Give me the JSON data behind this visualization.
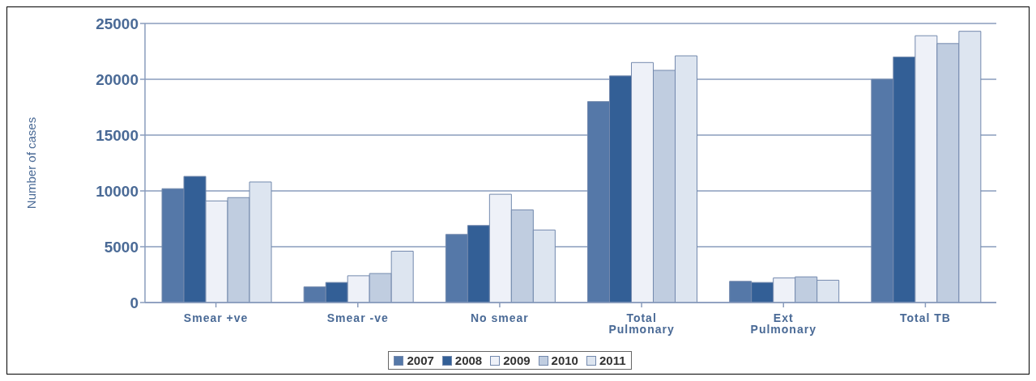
{
  "chart_data": {
    "type": "bar",
    "ylabel": "Number of cases",
    "categories": [
      "Smear +ve",
      "Smear -ve",
      "No smear",
      "Total Pulmonary",
      "Ext Pulmonary",
      "Total TB"
    ],
    "series": [
      {
        "name": "2007",
        "color": "#5578a8",
        "values": [
          10200,
          1400,
          6100,
          18000,
          1900,
          20000
        ]
      },
      {
        "name": "2008",
        "color": "#335f96",
        "values": [
          11300,
          1800,
          6900,
          20300,
          1800,
          22000
        ]
      },
      {
        "name": "2009",
        "color": "#eef1f8",
        "values": [
          9100,
          2400,
          9700,
          21500,
          2200,
          23900
        ]
      },
      {
        "name": "2010",
        "color": "#c0cde0",
        "values": [
          9400,
          2600,
          8300,
          20800,
          2300,
          23200
        ]
      },
      {
        "name": "2011",
        "color": "#dde5f0",
        "values": [
          10800,
          4600,
          6500,
          22100,
          2000,
          24300
        ]
      }
    ],
    "ylim": [
      0,
      25000
    ],
    "yticks": [
      0,
      5000,
      10000,
      15000,
      20000,
      25000
    ],
    "grid": "y",
    "legend": "bottom"
  }
}
